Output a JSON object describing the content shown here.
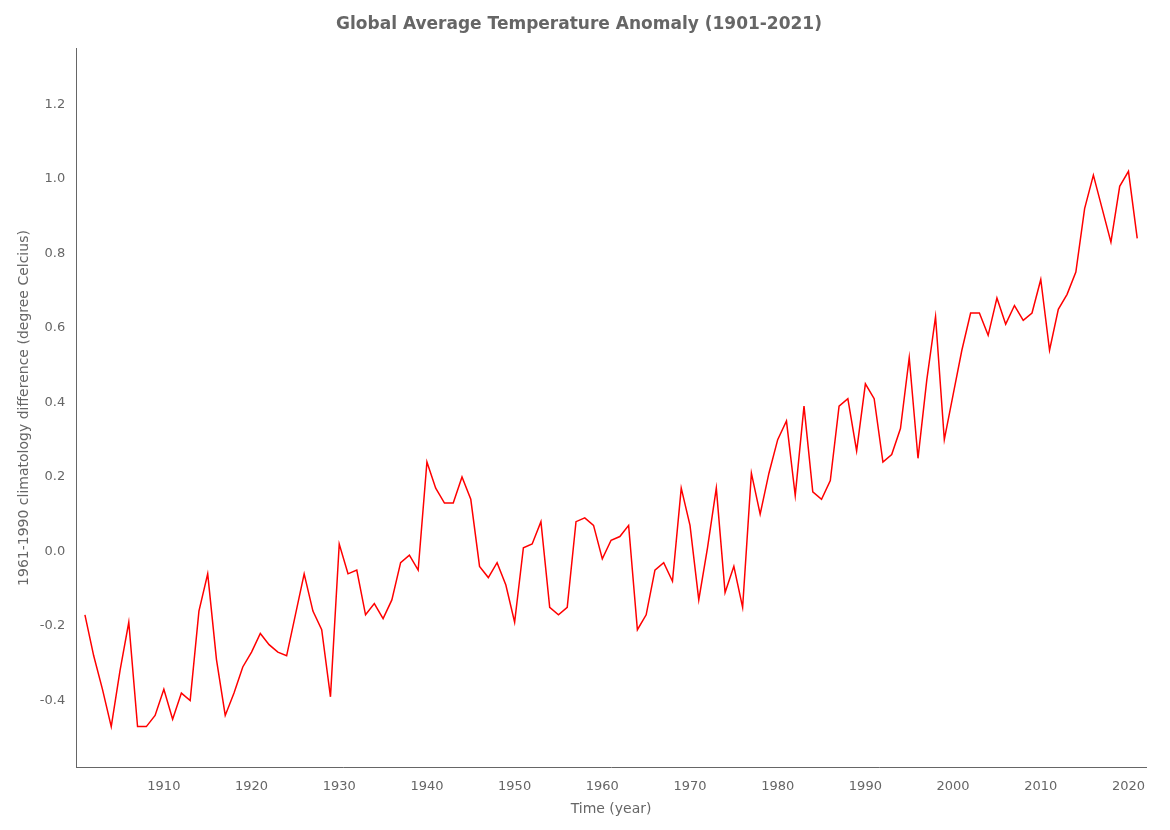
{
  "chart_data": {
    "type": "line",
    "title": "Global Average Temperature Anomaly (1901-2021)",
    "xlabel": "Time (year)",
    "ylabel": "1961-1990 climatology difference (degree Celcius)",
    "color": "#ff0000",
    "x": [
      1901,
      1902,
      1903,
      1904,
      1905,
      1906,
      1907,
      1908,
      1909,
      1910,
      1911,
      1912,
      1913,
      1914,
      1915,
      1916,
      1917,
      1918,
      1919,
      1920,
      1921,
      1922,
      1923,
      1924,
      1925,
      1926,
      1927,
      1928,
      1929,
      1930,
      1931,
      1932,
      1933,
      1934,
      1935,
      1936,
      1937,
      1938,
      1939,
      1940,
      1941,
      1942,
      1943,
      1944,
      1945,
      1946,
      1947,
      1948,
      1949,
      1950,
      1951,
      1952,
      1953,
      1954,
      1955,
      1956,
      1957,
      1958,
      1959,
      1960,
      1961,
      1962,
      1963,
      1964,
      1965,
      1966,
      1967,
      1968,
      1969,
      1970,
      1971,
      1972,
      1973,
      1974,
      1975,
      1976,
      1977,
      1978,
      1979,
      1980,
      1981,
      1982,
      1983,
      1984,
      1985,
      1986,
      1987,
      1988,
      1989,
      1990,
      1991,
      1992,
      1993,
      1994,
      1995,
      1996,
      1997,
      1998,
      1999,
      2000,
      2001,
      2002,
      2003,
      2004,
      2005,
      2006,
      2007,
      2008,
      2009,
      2010,
      2011,
      2012,
      2013,
      2014,
      2015,
      2016,
      2017,
      2018,
      2019,
      2020,
      2021
    ],
    "values": [
      -0.17,
      -0.28,
      -0.37,
      -0.47,
      -0.32,
      -0.19,
      -0.47,
      -0.47,
      -0.44,
      -0.37,
      -0.45,
      -0.38,
      -0.4,
      -0.16,
      -0.06,
      -0.29,
      -0.44,
      -0.38,
      -0.31,
      -0.27,
      -0.22,
      -0.25,
      -0.27,
      -0.28,
      -0.17,
      -0.06,
      -0.16,
      -0.21,
      -0.39,
      0.02,
      -0.06,
      -0.05,
      -0.17,
      -0.14,
      -0.18,
      -0.13,
      -0.03,
      -0.01,
      -0.05,
      0.24,
      0.17,
      0.13,
      0.13,
      0.2,
      0.14,
      -0.04,
      -0.07,
      -0.03,
      -0.09,
      -0.19,
      0.01,
      0.02,
      0.08,
      -0.15,
      -0.17,
      -0.15,
      0.08,
      0.09,
      0.07,
      -0.02,
      0.03,
      0.04,
      0.07,
      -0.21,
      -0.17,
      -0.05,
      -0.03,
      -0.08,
      0.17,
      0.07,
      -0.13,
      0.01,
      0.17,
      -0.11,
      -0.04,
      -0.15,
      0.21,
      0.1,
      0.21,
      0.3,
      0.35,
      0.15,
      0.39,
      0.16,
      0.14,
      0.19,
      0.39,
      0.41,
      0.27,
      0.45,
      0.41,
      0.24,
      0.26,
      0.33,
      0.52,
      0.25,
      0.46,
      0.63,
      0.3,
      0.42,
      0.54,
      0.64,
      0.64,
      0.58,
      0.68,
      0.61,
      0.66,
      0.62,
      0.64,
      0.73,
      0.54,
      0.65,
      0.69,
      0.75,
      0.92,
      1.01,
      0.92,
      0.83,
      0.98,
      1.02,
      0.84
    ],
    "xlim": [
      1900,
      2022
    ],
    "ylim": [
      -0.58,
      1.35
    ],
    "xticks": [
      1910,
      1920,
      1930,
      1940,
      1950,
      1960,
      1970,
      1980,
      1990,
      2000,
      2010,
      2020
    ],
    "yticks": [
      -0.4,
      -0.2,
      {
        "value": 0,
        "label": "0.0"
      },
      0.2,
      0.4,
      0.6,
      0.8,
      {
        "value": 1,
        "label": "1.0"
      },
      1.2
    ],
    "grid": false
  }
}
